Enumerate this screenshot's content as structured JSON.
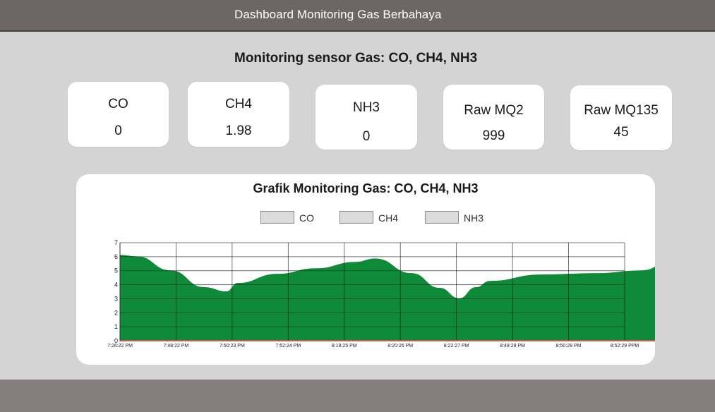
{
  "header": {
    "title": "Dashboard Monitoring Gas Berbahaya"
  },
  "main": {
    "title": "Monitoring sensor Gas: CO, CH4, NH3"
  },
  "cards": [
    {
      "label": "CO",
      "value": "0"
    },
    {
      "label": "CH4",
      "value": "1.98"
    },
    {
      "label": "NH3",
      "value": "0"
    },
    {
      "label": "Raw MQ2",
      "value": "999"
    },
    {
      "label": "Raw MQ135",
      "value": "45"
    }
  ],
  "chart": {
    "title": "Grafik Monitoring Gas: CO, CH4, NH3",
    "legend": [
      "CO",
      "CH4",
      "NH3"
    ]
  },
  "colors": {
    "header_bg": "#6e6664",
    "page_bg": "#d4d4d4",
    "footer_bg": "#857e7c",
    "area_fill": "#0e8a38",
    "baseline": "#d9534f"
  },
  "chart_data": {
    "type": "area",
    "title": "Grafik Monitoring Gas: CO, CH4, NH3",
    "xlabel": "",
    "ylabel": "",
    "ylim": [
      0,
      7
    ],
    "yticks": [
      0,
      1,
      2,
      3,
      4,
      5,
      6,
      7
    ],
    "grid": true,
    "legend_position": "top-center",
    "x_tick_labels": [
      "7:26:22 PM",
      "7:48:22 PM",
      "7:50:23 PM",
      "7:52:24 PM",
      "8:18:25 PM",
      "8:20:26 PM",
      "8:22:27 PM",
      "8:48:28 PM",
      "8:50:28 PM",
      "8:52:29 PPM"
    ],
    "series": [
      {
        "name": "CH4",
        "color": "#0e8a38",
        "points": [
          [
            0.0,
            6.1
          ],
          [
            0.3,
            6.0
          ],
          [
            0.9,
            5.0
          ],
          [
            1.5,
            3.8
          ],
          [
            1.9,
            3.5
          ],
          [
            2.1,
            4.1
          ],
          [
            2.8,
            4.75
          ],
          [
            3.5,
            5.15
          ],
          [
            4.2,
            5.6
          ],
          [
            4.55,
            5.85
          ],
          [
            5.2,
            4.8
          ],
          [
            5.7,
            3.75
          ],
          [
            6.05,
            3.0
          ],
          [
            6.35,
            3.8
          ],
          [
            6.6,
            4.25
          ],
          [
            7.5,
            4.7
          ],
          [
            8.5,
            4.8
          ],
          [
            9.3,
            5.0
          ],
          [
            9.8,
            5.55
          ],
          [
            10.0,
            5.85
          ]
        ]
      },
      {
        "name": "CO",
        "color": "#d9534f",
        "points": [
          [
            0.0,
            0
          ],
          [
            10.0,
            0
          ]
        ]
      },
      {
        "name": "NH3",
        "color": "#d9534f",
        "points": [
          [
            0.0,
            0
          ],
          [
            10.0,
            0
          ]
        ]
      }
    ]
  }
}
